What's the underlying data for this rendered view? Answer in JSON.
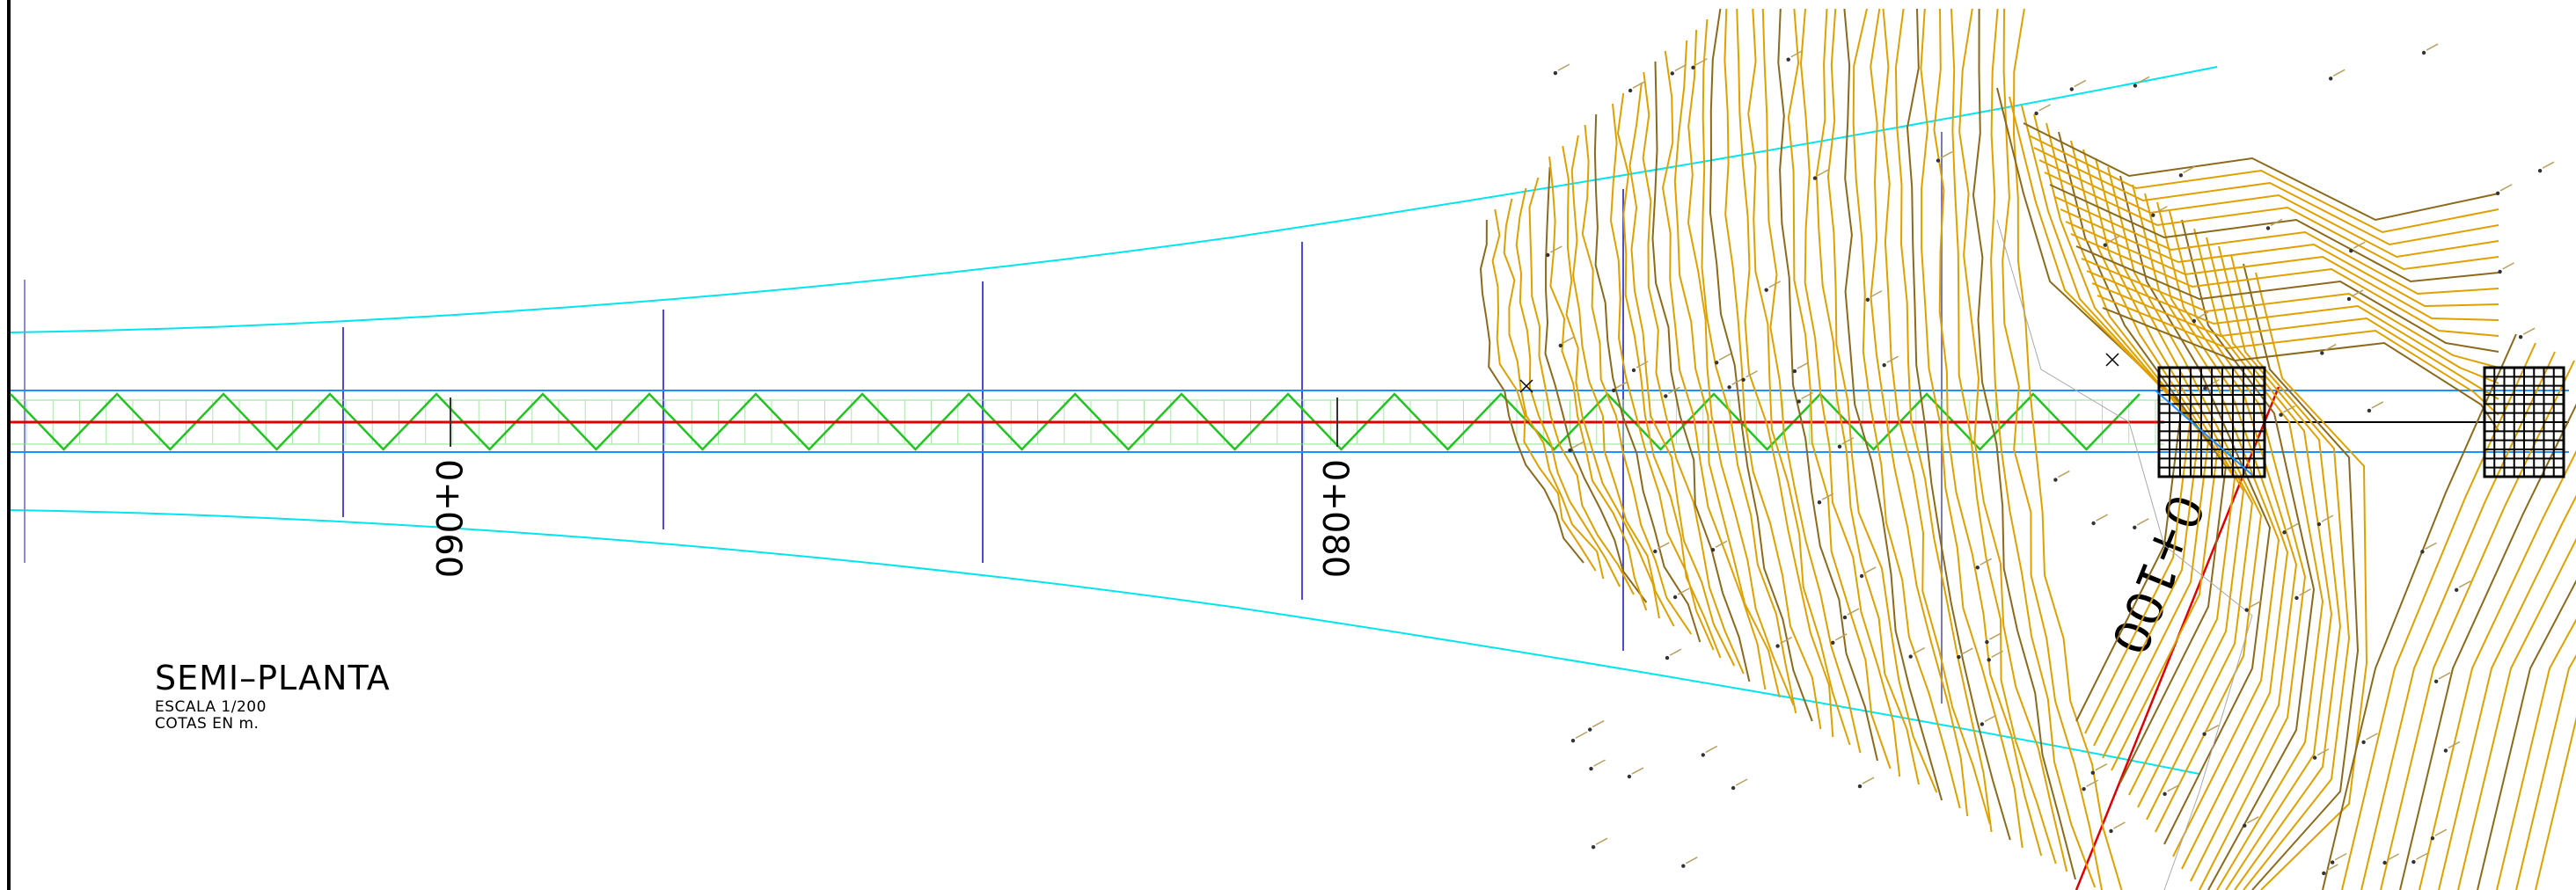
{
  "drawing": {
    "title": "SEMI–PLANTA",
    "scale": "ESCALA 1/200",
    "units": "COTAS EN m."
  },
  "stations": [
    {
      "label": "0+060"
    },
    {
      "label": "0+080"
    },
    {
      "label": "0+100"
    }
  ],
  "colors": {
    "road_edge": "#00e5ee",
    "cross_section": "#4b4bd8",
    "lane": "#1e8fff",
    "axis": "#e00000",
    "zigzag": "#21c421",
    "contour_light": "#e0a000",
    "contour_dark": "#8c6a1a",
    "grid": "#000000"
  }
}
